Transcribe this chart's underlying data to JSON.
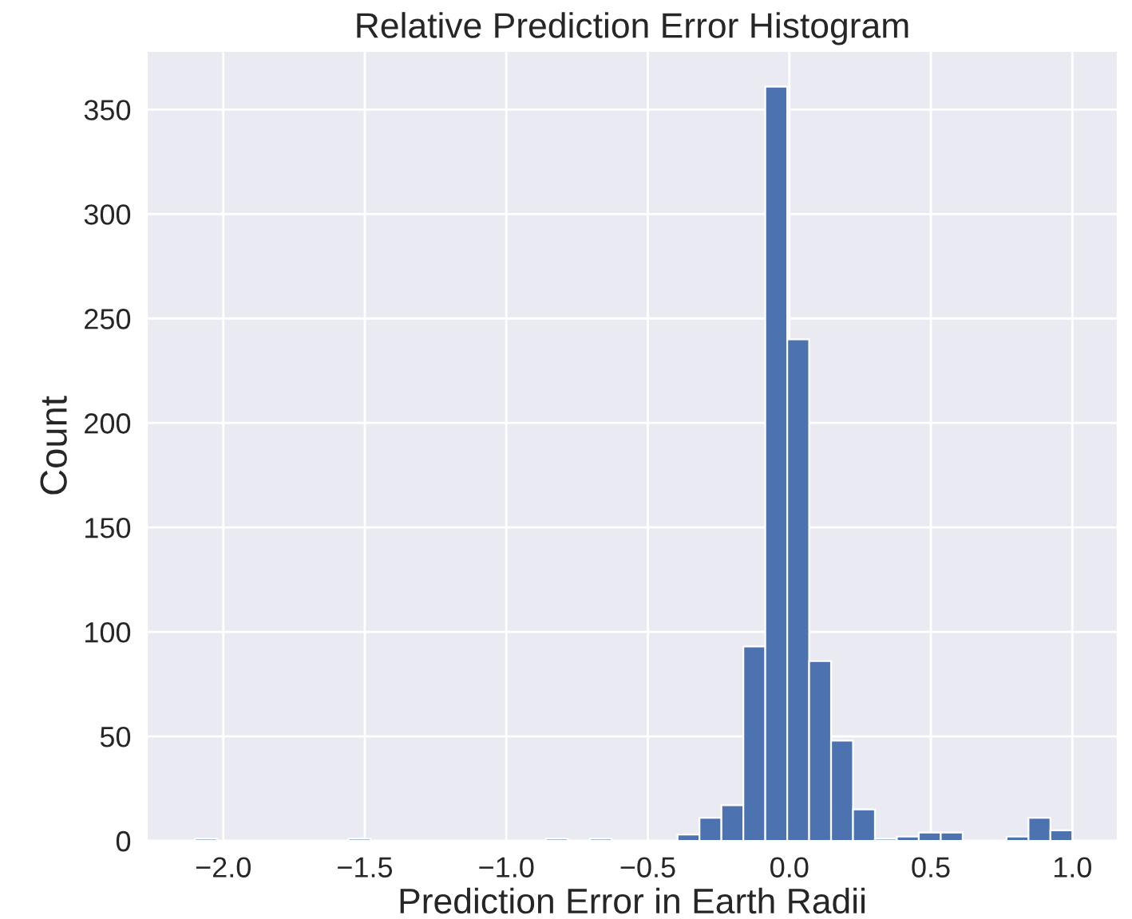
{
  "chart_data": {
    "type": "histogram",
    "title": "Relative Prediction Error Histogram",
    "xlabel": "Prediction Error in Earth Radii",
    "ylabel": "Count",
    "bins": [
      -2.1,
      -2.0225,
      -1.945,
      -1.8675,
      -1.79,
      -1.7125,
      -1.635,
      -1.5575,
      -1.48,
      -1.4025,
      -1.325,
      -1.2475,
      -1.17,
      -1.0925,
      -1.015,
      -0.9375,
      -0.86,
      -0.7825,
      -0.705,
      -0.6275,
      -0.55,
      -0.4725,
      -0.395,
      -0.3175,
      -0.24,
      -0.1625,
      -0.085,
      -0.0075,
      0.07,
      0.1475,
      0.225,
      0.3025,
      0.38,
      0.4575,
      0.535,
      0.6125,
      0.69,
      0.7675,
      0.845,
      0.9225,
      1.0
    ],
    "values": [
      1,
      0,
      0,
      0,
      0,
      0,
      0,
      1,
      0,
      0,
      0,
      0,
      0,
      0,
      0,
      0,
      1,
      0,
      1,
      0,
      0,
      0,
      3,
      11,
      17,
      93,
      361,
      240,
      86,
      48,
      15,
      1,
      2,
      4,
      4,
      0,
      0,
      2,
      11,
      5
    ],
    "color": "#4c72b0",
    "xlim": [
      -2.27,
      1.16
    ],
    "ylim": [
      0,
      378
    ],
    "xticks": [
      {
        "value": -2.0,
        "label": "−2.0"
      },
      {
        "value": -1.5,
        "label": "−1.5"
      },
      {
        "value": -1.0,
        "label": "−1.0"
      },
      {
        "value": -0.5,
        "label": "−0.5"
      },
      {
        "value": 0.0,
        "label": "0.0"
      },
      {
        "value": 0.5,
        "label": "0.5"
      },
      {
        "value": 1.0,
        "label": "1.0"
      }
    ],
    "yticks": [
      0,
      50,
      100,
      150,
      200,
      250,
      300,
      350
    ],
    "grid": true
  }
}
